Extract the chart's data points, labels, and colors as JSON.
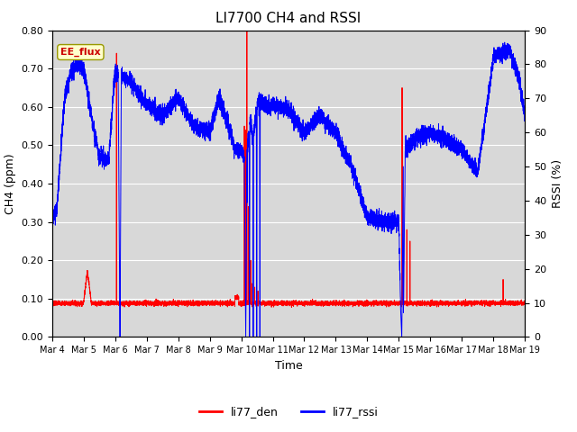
{
  "title": "LI7700 CH4 and RSSI",
  "xlabel": "Time",
  "ylabel_left": "CH4 (ppm)",
  "ylabel_right": "RSSI (%)",
  "annotation": "EE_flux",
  "legend_labels": [
    "li77_den",
    "li77_rssi"
  ],
  "legend_colors": [
    "red",
    "blue"
  ],
  "ylim_left": [
    0.0,
    0.8
  ],
  "ylim_right": [
    0,
    90
  ],
  "yticks_left": [
    0.0,
    0.1,
    0.2,
    0.3,
    0.4,
    0.5,
    0.6,
    0.7,
    0.8
  ],
  "yticks_right": [
    0,
    10,
    20,
    30,
    40,
    50,
    60,
    70,
    80,
    90
  ],
  "xtick_labels": [
    "Mar 4",
    "Mar 5",
    "Mar 6",
    "Mar 7",
    "Mar 8",
    "Mar 9",
    "Mar 10",
    "Mar 11",
    "Mar 12",
    "Mar 13",
    "Mar 14",
    "Mar 15",
    "Mar 16",
    "Mar 17",
    "Mar 18",
    "Mar 19"
  ],
  "background_color": "#d8d8d8",
  "fig_background": "#ffffff",
  "line_color_red": "#ff0000",
  "line_color_blue": "#0000ff",
  "title_fontsize": 11,
  "axis_fontsize": 9,
  "tick_fontsize": 8,
  "rssi_profile_t": [
    0,
    0.15,
    0.4,
    0.6,
    0.8,
    1.0,
    1.3,
    1.5,
    1.8,
    2.0,
    2.1,
    2.15,
    2.2,
    2.5,
    3.0,
    3.5,
    4.0,
    4.5,
    5.0,
    5.3,
    5.6,
    5.8,
    6.0,
    6.1,
    6.12,
    6.15,
    6.18,
    6.2,
    6.25,
    6.3,
    6.35,
    6.4,
    6.5,
    6.6,
    6.7,
    6.8,
    7.0,
    7.5,
    8.0,
    8.5,
    9.0,
    9.5,
    10.0,
    10.5,
    11.0,
    11.05,
    11.1,
    11.15,
    11.2,
    11.5,
    12.0,
    12.5,
    13.0,
    13.5,
    14.0,
    14.2,
    14.5,
    14.8,
    15.0
  ],
  "rssi_profile_v": [
    35,
    37,
    70,
    78,
    80,
    79,
    62,
    53,
    52,
    78,
    77,
    0,
    77,
    75,
    68,
    65,
    70,
    62,
    60,
    70,
    62,
    55,
    55,
    52,
    20,
    0,
    20,
    55,
    60,
    65,
    58,
    60,
    68,
    70,
    68,
    68,
    68,
    67,
    60,
    65,
    60,
    50,
    35,
    34,
    34,
    10,
    0,
    10,
    55,
    58,
    60,
    58,
    55,
    48,
    82,
    83,
    84,
    76,
    65
  ]
}
